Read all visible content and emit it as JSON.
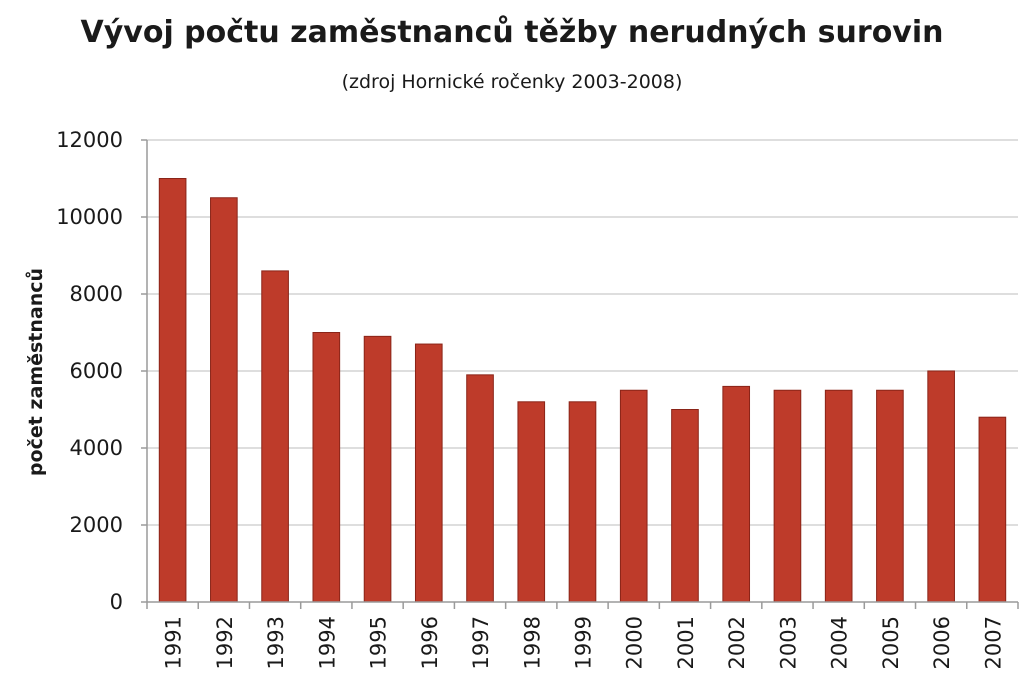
{
  "chart_data": {
    "type": "bar",
    "title": "Vývoj počtu zaměstnanců těžby nerudných surovin",
    "subtitle": "(zdroj Hornické ročenky 2003-2008)",
    "xlabel": "",
    "ylabel": "počet zaměstnanců",
    "categories": [
      "1991",
      "1992",
      "1993",
      "1994",
      "1995",
      "1996",
      "1997",
      "1998",
      "1999",
      "2000",
      "2001",
      "2002",
      "2003",
      "2004",
      "2005",
      "2006",
      "2007"
    ],
    "series": [
      {
        "values": [
          11000,
          10500,
          8600,
          7000,
          6900,
          6700,
          5900,
          5200,
          5200,
          5500,
          5000,
          5600,
          5500,
          5500,
          5500,
          6000,
          4800
        ]
      }
    ],
    "ylim": [
      0,
      12000
    ],
    "yticks": [
      "0",
      "2000",
      "4000",
      "6000",
      "8000",
      "10000",
      "12000"
    ],
    "grid": true,
    "legend": "none",
    "bar_color": "#be3b2a",
    "bar_edge_color": "#8a2418",
    "grid_color": "#d4d4d4"
  }
}
